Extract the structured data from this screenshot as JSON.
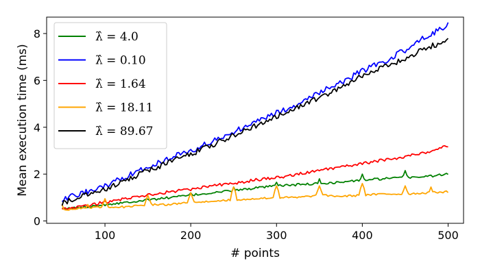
{
  "chart_data": {
    "type": "line",
    "title": "",
    "xlabel": "# points",
    "ylabel": "Mean execution time (ms)",
    "xlim": [
      32,
      518
    ],
    "ylim": [
      -0.1,
      8.7
    ],
    "xticks": [
      100,
      200,
      300,
      400,
      500
    ],
    "yticks": [
      0,
      2,
      4,
      6,
      8
    ],
    "grid": false,
    "legend_position": "top-left",
    "series": [
      {
        "name": "λ̂ = 4.0",
        "color": "#008000",
        "x": [
          50,
          75,
          100,
          125,
          150,
          175,
          200,
          225,
          250,
          275,
          300,
          325,
          350,
          375,
          400,
          425,
          450,
          475,
          500
        ],
        "y": [
          0.5,
          0.6,
          0.7,
          0.8,
          0.9,
          1.0,
          1.1,
          1.2,
          1.3,
          1.4,
          1.5,
          1.55,
          1.6,
          1.65,
          1.75,
          1.8,
          1.85,
          1.9,
          2.0
        ],
        "peaks": [
          [
            200,
            1.2
          ],
          [
            250,
            1.45
          ],
          [
            300,
            1.65
          ],
          [
            350,
            1.8
          ],
          [
            400,
            2.0
          ],
          [
            450,
            2.15
          ]
        ]
      },
      {
        "name": "λ̂ = 0.10",
        "color": "#0000ff",
        "x": [
          50,
          75,
          100,
          125,
          150,
          175,
          200,
          225,
          250,
          275,
          300,
          325,
          350,
          375,
          400,
          425,
          450,
          475,
          500
        ],
        "y": [
          0.9,
          1.2,
          1.5,
          1.9,
          2.3,
          2.7,
          3.0,
          3.4,
          3.8,
          4.2,
          4.6,
          5.0,
          5.5,
          5.9,
          6.4,
          6.8,
          7.3,
          7.9,
          8.35
        ]
      },
      {
        "name": "λ̂ = 1.64",
        "color": "#ff0000",
        "x": [
          50,
          75,
          100,
          125,
          150,
          175,
          200,
          225,
          250,
          275,
          300,
          325,
          350,
          375,
          400,
          425,
          450,
          475,
          500
        ],
        "y": [
          0.5,
          0.65,
          0.8,
          0.95,
          1.1,
          1.25,
          1.35,
          1.5,
          1.6,
          1.75,
          1.85,
          2.0,
          2.15,
          2.3,
          2.45,
          2.6,
          2.75,
          2.95,
          3.2
        ]
      },
      {
        "name": "λ̂ = 18.11",
        "color": "#ffa500",
        "x": [
          50,
          75,
          100,
          125,
          150,
          175,
          200,
          225,
          250,
          275,
          300,
          325,
          350,
          375,
          400,
          425,
          450,
          475,
          500
        ],
        "y": [
          0.45,
          0.55,
          0.6,
          0.6,
          0.7,
          0.7,
          0.8,
          0.85,
          0.9,
          0.95,
          1.0,
          1.0,
          1.1,
          1.05,
          1.1,
          1.15,
          1.15,
          1.2,
          1.25
        ],
        "peaks": [
          [
            50,
            0.7
          ],
          [
            60,
            0.5
          ],
          [
            65,
            0.6
          ],
          [
            80,
            0.7
          ],
          [
            100,
            0.95
          ],
          [
            150,
            1.1
          ],
          [
            200,
            1.2
          ],
          [
            250,
            1.45
          ],
          [
            300,
            1.5
          ],
          [
            350,
            1.5
          ],
          [
            400,
            1.6
          ],
          [
            450,
            1.5
          ],
          [
            480,
            1.45
          ]
        ]
      },
      {
        "name": "λ̂ = 89.67",
        "color": "#000000",
        "x": [
          50,
          75,
          100,
          125,
          150,
          175,
          200,
          225,
          250,
          275,
          300,
          325,
          350,
          375,
          400,
          425,
          450,
          475,
          500
        ],
        "y": [
          0.75,
          1.05,
          1.35,
          1.75,
          2.15,
          2.5,
          2.85,
          3.25,
          3.65,
          4.05,
          4.45,
          4.85,
          5.25,
          5.7,
          6.2,
          6.6,
          6.9,
          7.4,
          7.7
        ]
      }
    ]
  }
}
